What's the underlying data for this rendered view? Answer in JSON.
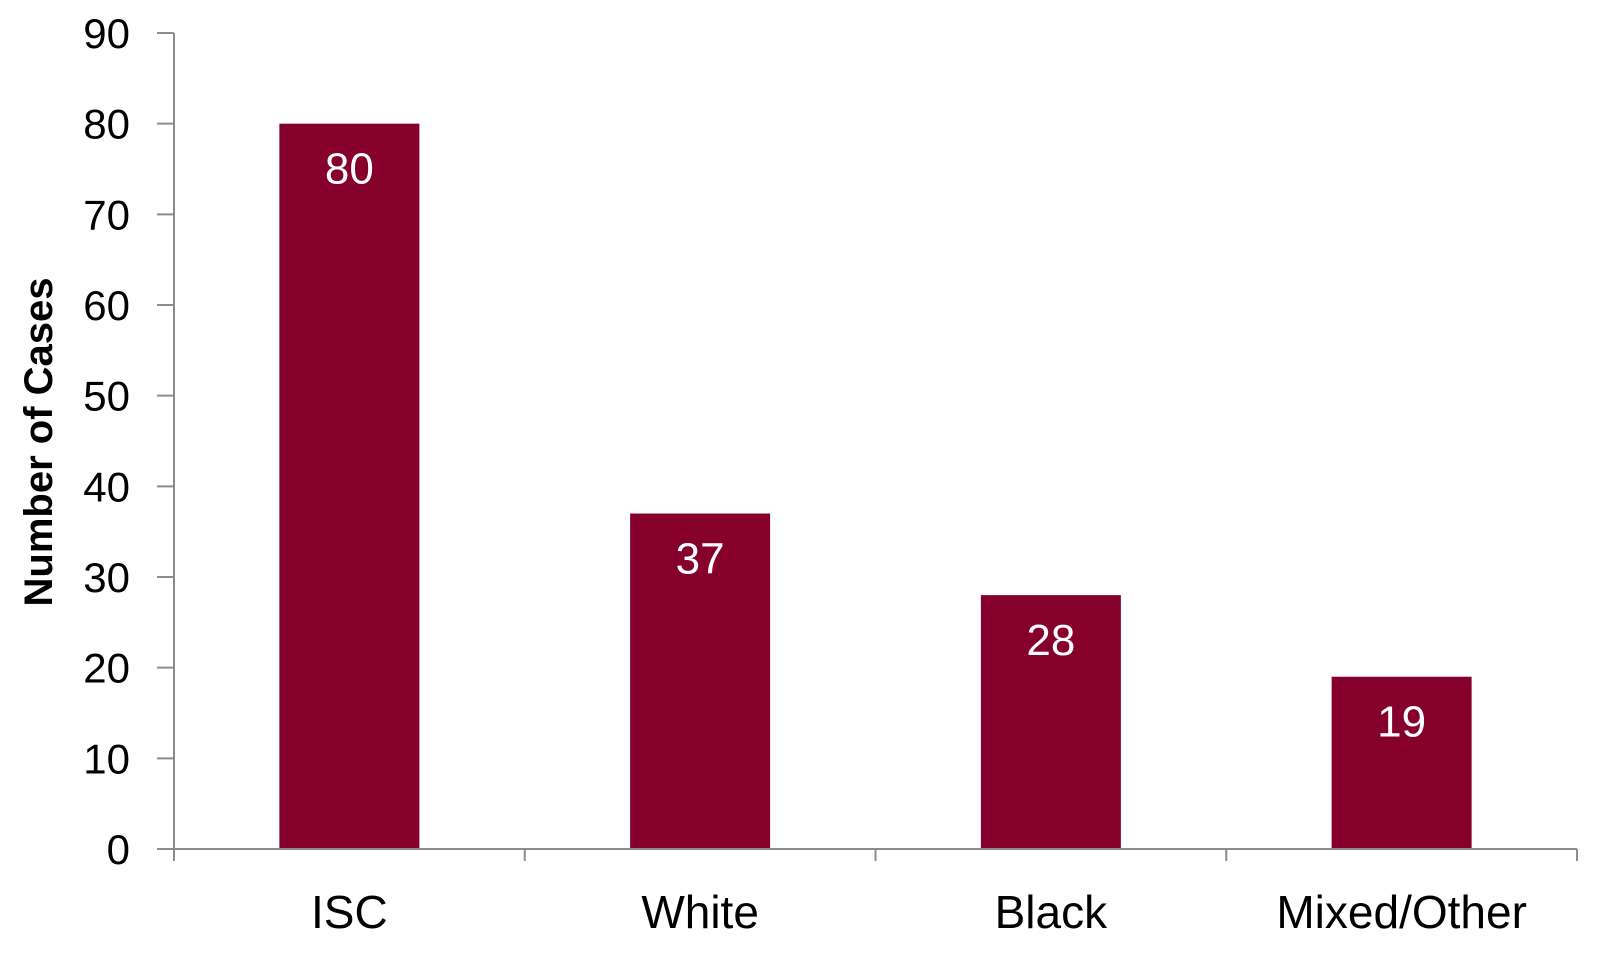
{
  "chart_data": {
    "type": "bar",
    "title": "",
    "xlabel": "",
    "ylabel": "Number of Cases",
    "categories": [
      "ISC",
      "White",
      "Black",
      "Mixed/Other"
    ],
    "series": [
      {
        "values": [
          80,
          37,
          28,
          19
        ]
      }
    ],
    "data_labels": [
      "80",
      "37",
      "28",
      "19"
    ],
    "ylim": [
      0,
      90
    ],
    "yticks": [
      0,
      10,
      20,
      30,
      40,
      50,
      60,
      70,
      80,
      90
    ],
    "ytick_labels": [
      "0",
      "10",
      "20",
      "30",
      "40",
      "50",
      "60",
      "70",
      "80",
      "90"
    ],
    "grid": false,
    "legend": "none",
    "colors": {
      "bar": "#85002B",
      "axis": "#8C8C8C",
      "data_label": "#FFFFFF",
      "text": "#000000"
    }
  }
}
